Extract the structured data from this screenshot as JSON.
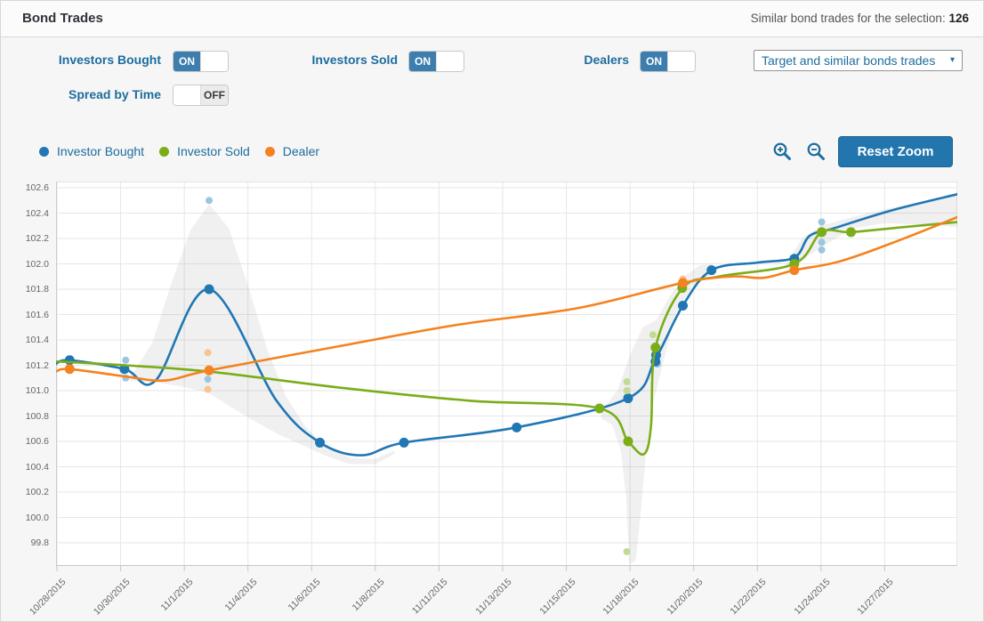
{
  "header": {
    "title": "Bond Trades",
    "summary_label": "Similar bond trades for the selection:",
    "summary_count": "126"
  },
  "controls": {
    "toggles": [
      {
        "label": "Investors Bought",
        "state": "ON"
      },
      {
        "label": "Investors Sold",
        "state": "ON"
      },
      {
        "label": "Dealers",
        "state": "ON"
      },
      {
        "label": "Spread by Time",
        "state": "OFF"
      }
    ],
    "dropdown": {
      "value": "Target and similar bonds trades",
      "arrow": "▾"
    }
  },
  "legend": [
    {
      "label": "Investor Bought",
      "color": "#2077b4"
    },
    {
      "label": "Investor Sold",
      "color": "#7aad18"
    },
    {
      "label": "Dealer",
      "color": "#f58220"
    }
  ],
  "toolbar": {
    "reset_zoom_label": "Reset Zoom",
    "zoom_in_icon": "magnifier-plus",
    "zoom_out_icon": "magnifier-minus"
  },
  "chart_data": {
    "type": "line",
    "x_unit": "tick-index",
    "x_ticks": [
      "10/28/2015",
      "10/30/2015",
      "11/1/2015",
      "11/4/2015",
      "11/6/2015",
      "11/8/2015",
      "11/11/2015",
      "11/13/2015",
      "11/15/2015",
      "11/18/2015",
      "11/20/2015",
      "11/22/2015",
      "11/24/2015",
      "11/27/2015"
    ],
    "y_ticks": [
      "102.6",
      "102.4",
      "102.2",
      "102.0",
      "101.8",
      "101.6",
      "101.4",
      "101.2",
      "101.0",
      "100.8",
      "100.6",
      "100.4",
      "100.2",
      "100.0",
      "99.8"
    ],
    "ylim": [
      99.62,
      102.65
    ],
    "grid": true,
    "band_color": "rgba(140,140,140,0.13)",
    "series": [
      {
        "name": "Investor Bought",
        "color": "#2077b4",
        "light_color": "#9cc6e0",
        "line": [
          [
            -0.02,
            101.21
          ],
          [
            0.2,
            101.24
          ],
          [
            1.06,
            101.17
          ],
          [
            1.55,
            101.08
          ],
          [
            2.39,
            101.8
          ],
          [
            3.45,
            100.92
          ],
          [
            4.13,
            100.59
          ],
          [
            4.78,
            100.49
          ],
          [
            5.45,
            100.59
          ],
          [
            7.22,
            100.71
          ],
          [
            8.97,
            100.94
          ],
          [
            9.4,
            101.25
          ],
          [
            9.83,
            101.67
          ],
          [
            10.28,
            101.95
          ],
          [
            11.0,
            102.01
          ],
          [
            11.58,
            102.05
          ],
          [
            11.82,
            102.22
          ],
          [
            12.2,
            102.28
          ],
          [
            13.1,
            102.42
          ],
          [
            14.15,
            102.55
          ]
        ],
        "points": [
          [
            0.2,
            101.24
          ],
          [
            1.06,
            101.17
          ],
          [
            2.39,
            101.8
          ],
          [
            4.13,
            100.59
          ],
          [
            5.45,
            100.59
          ],
          [
            7.22,
            100.71
          ],
          [
            8.97,
            100.94
          ],
          [
            9.4,
            101.23
          ],
          [
            9.41,
            101.28
          ],
          [
            9.83,
            101.67
          ],
          [
            10.28,
            101.95
          ],
          [
            11.58,
            102.04
          ]
        ],
        "satellites": [
          [
            1.08,
            101.24
          ],
          [
            1.08,
            101.1
          ],
          [
            2.39,
            102.5
          ],
          [
            2.37,
            101.09
          ],
          [
            9.43,
            101.21
          ],
          [
            12.01,
            102.33
          ],
          [
            12.01,
            102.17
          ],
          [
            12.01,
            102.11
          ]
        ]
      },
      {
        "name": "Investor Sold",
        "color": "#7aad18",
        "light_color": "#c4da94",
        "line": [
          [
            -0.02,
            101.23
          ],
          [
            1.06,
            101.2
          ],
          [
            2.39,
            101.15
          ],
          [
            4.5,
            101.02
          ],
          [
            6.5,
            100.92
          ],
          [
            8.52,
            100.86
          ],
          [
            8.97,
            100.6
          ],
          [
            9.22,
            100.5
          ],
          [
            9.33,
            100.72
          ],
          [
            9.4,
            101.34
          ],
          [
            9.83,
            101.81
          ],
          [
            10.4,
            101.9
          ],
          [
            11.58,
            102.0
          ],
          [
            12.01,
            102.25
          ],
          [
            12.47,
            102.25
          ],
          [
            13.3,
            102.29
          ],
          [
            14.15,
            102.33
          ]
        ],
        "points": [
          [
            8.52,
            100.86
          ],
          [
            8.97,
            100.6
          ],
          [
            9.4,
            101.34
          ],
          [
            9.82,
            101.81
          ],
          [
            11.58,
            102.0
          ],
          [
            12.01,
            102.25
          ],
          [
            12.47,
            102.25
          ]
        ],
        "satellites": [
          [
            8.95,
            101.07
          ],
          [
            8.95,
            101.0
          ],
          [
            9.36,
            101.44
          ],
          [
            8.95,
            99.73
          ]
        ]
      },
      {
        "name": "Dealer",
        "color": "#f58220",
        "light_color": "#f8c490",
        "line": [
          [
            -0.02,
            101.15
          ],
          [
            0.2,
            101.17
          ],
          [
            1.1,
            101.11
          ],
          [
            1.7,
            101.08
          ],
          [
            2.39,
            101.16
          ],
          [
            4.43,
            101.35
          ],
          [
            6.3,
            101.52
          ],
          [
            8.17,
            101.65
          ],
          [
            9.83,
            101.85
          ],
          [
            10.6,
            101.9
          ],
          [
            11.1,
            101.89
          ],
          [
            11.58,
            101.95
          ],
          [
            12.3,
            102.02
          ],
          [
            13.2,
            102.18
          ],
          [
            14.15,
            102.37
          ]
        ],
        "points": [
          [
            0.2,
            101.17
          ],
          [
            2.39,
            101.16
          ],
          [
            9.83,
            101.85
          ],
          [
            11.58,
            101.95
          ]
        ],
        "satellites": [
          [
            2.37,
            101.3
          ],
          [
            2.37,
            101.01
          ],
          [
            9.83,
            101.88
          ]
        ]
      }
    ],
    "bands": [
      [
        [
          1.15,
          101.1
        ],
        [
          1.5,
          101.38
        ],
        [
          1.8,
          101.85
        ],
        [
          2.1,
          102.27
        ],
        [
          2.39,
          102.47
        ],
        [
          2.7,
          102.28
        ],
        [
          3.0,
          101.83
        ],
        [
          3.3,
          101.33
        ],
        [
          3.6,
          100.95
        ],
        [
          3.9,
          100.72
        ],
        [
          4.2,
          100.57
        ],
        [
          4.6,
          100.47
        ],
        [
          5.0,
          100.46
        ],
        [
          5.3,
          100.53
        ],
        [
          5.3,
          100.5
        ],
        [
          5.0,
          100.42
        ],
        [
          4.6,
          100.42
        ],
        [
          4.2,
          100.49
        ],
        [
          3.9,
          100.56
        ],
        [
          3.5,
          100.65
        ],
        [
          3.1,
          100.76
        ],
        [
          2.7,
          100.88
        ],
        [
          2.39,
          100.98
        ],
        [
          2.0,
          101.03
        ],
        [
          1.6,
          101.06
        ],
        [
          1.15,
          101.08
        ]
      ],
      [
        [
          8.55,
          100.84
        ],
        [
          8.8,
          101.0
        ],
        [
          9.0,
          101.28
        ],
        [
          9.2,
          101.5
        ],
        [
          9.42,
          101.56
        ],
        [
          9.62,
          101.74
        ],
        [
          9.85,
          101.9
        ],
        [
          10.1,
          101.99
        ],
        [
          10.3,
          102.0
        ],
        [
          10.3,
          101.93
        ],
        [
          10.0,
          101.84
        ],
        [
          9.7,
          101.58
        ],
        [
          9.5,
          101.18
        ],
        [
          9.35,
          100.88
        ],
        [
          9.25,
          100.5
        ],
        [
          9.16,
          100.0
        ],
        [
          9.09,
          99.66
        ],
        [
          8.99,
          99.63
        ],
        [
          8.94,
          100.15
        ],
        [
          8.86,
          100.52
        ],
        [
          8.72,
          100.73
        ],
        [
          8.55,
          100.78
        ]
      ],
      [
        [
          11.45,
          102.0
        ],
        [
          11.7,
          102.2
        ],
        [
          12.0,
          102.3
        ],
        [
          12.5,
          102.37
        ],
        [
          13.0,
          102.43
        ],
        [
          13.6,
          102.49
        ],
        [
          14.15,
          102.54
        ],
        [
          14.15,
          102.29
        ],
        [
          13.6,
          102.31
        ],
        [
          13.0,
          102.32
        ],
        [
          12.5,
          102.28
        ],
        [
          12.0,
          102.13
        ],
        [
          11.7,
          102.03
        ],
        [
          11.45,
          101.96
        ]
      ]
    ]
  }
}
